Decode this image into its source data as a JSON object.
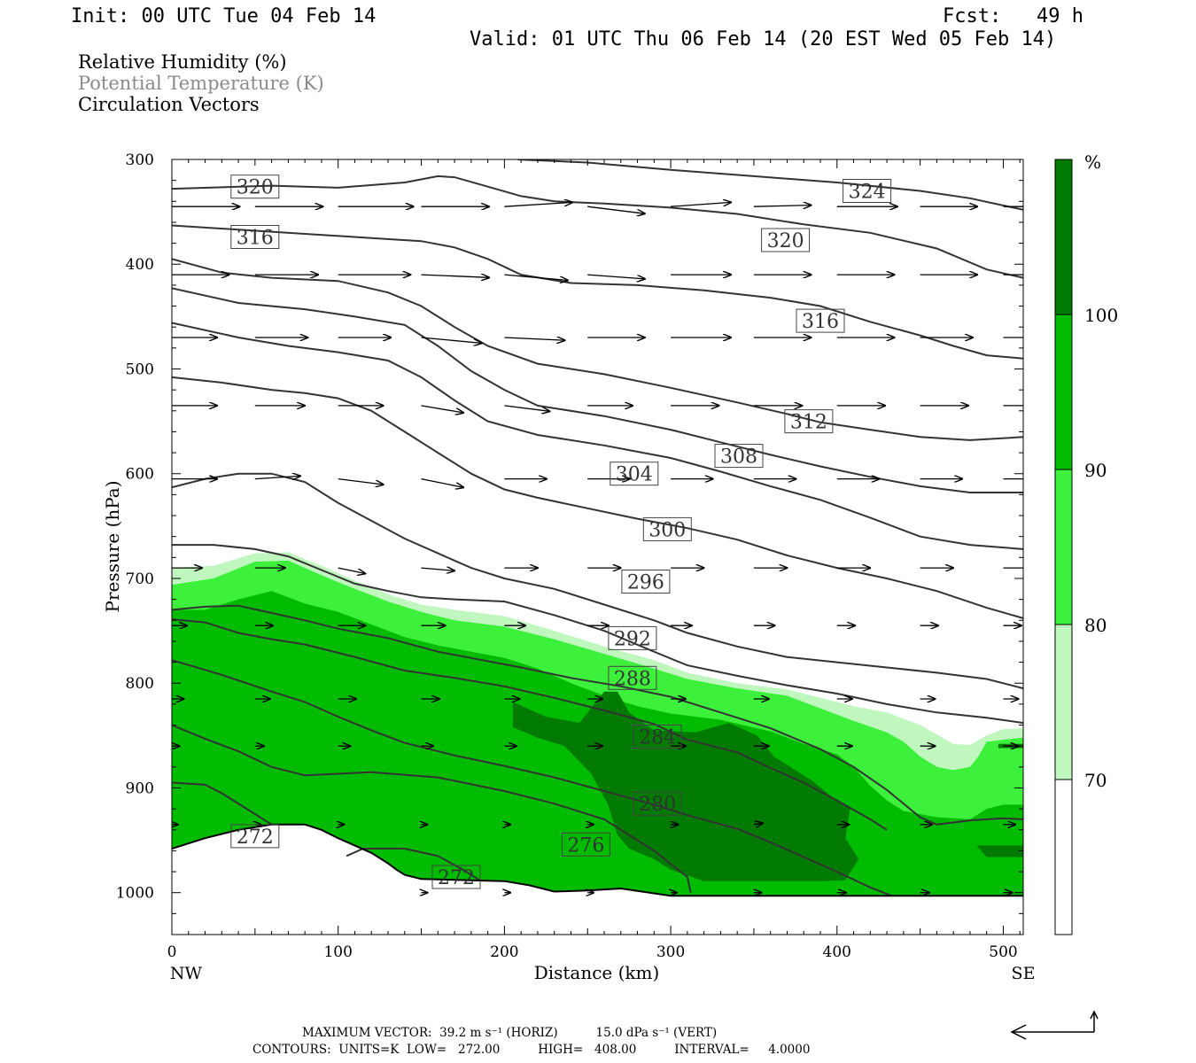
{
  "header": {
    "init": "Init: 00 UTC Tue 04 Feb 14",
    "fcst": "Fcst:   49 h",
    "valid": "Valid: 01 UTC Thu 06 Feb 14 (20 EST Wed 05 Feb 14)"
  },
  "legend_lines": [
    {
      "text": "Relative Humidity (%)",
      "color": "#000000"
    },
    {
      "text": "Potential Temperature (K)",
      "color": "#8a8a8a"
    },
    {
      "text": "Circulation Vectors",
      "color": "#000000"
    }
  ],
  "footer": {
    "max_vector": "MAXIMUM VECTOR:  39.2 m s⁻¹ (HORIZ)          15.0 dPa s⁻¹ (VERT)",
    "contours": "CONTOURS:  UNITS=K  LOW=   272.00          HIGH=   408.00          INTERVAL=     4.0000"
  },
  "chart_data": {
    "type": "cross-section",
    "x_axis": {
      "label": "Distance (km)",
      "range": [
        0,
        512
      ],
      "ticks": [
        0,
        100,
        200,
        300,
        400,
        500
      ],
      "left_end_label": "NW",
      "right_end_label": "SE"
    },
    "y_axis": {
      "label": "Pressure (hPa)",
      "range": [
        300,
        1040
      ],
      "inverted": true,
      "ticks": [
        300,
        400,
        500,
        600,
        700,
        800,
        900,
        1000
      ]
    },
    "rh_colorbar": {
      "unit": "%",
      "levels": [
        70,
        80,
        90,
        100
      ],
      "colors": [
        "#ffffff",
        "#bff7bf",
        "#3cf03c",
        "#00bb00",
        "#007a00"
      ]
    },
    "rh_fill_regions": [
      {
        "level": 70,
        "color": "#bff7bf",
        "boundary": [
          [
            0,
            690
          ],
          [
            25,
            688
          ],
          [
            50,
            676
          ],
          [
            70,
            675
          ],
          [
            90,
            688
          ],
          [
            110,
            702
          ],
          [
            130,
            715
          ],
          [
            150,
            725
          ],
          [
            170,
            730
          ],
          [
            200,
            736
          ],
          [
            230,
            750
          ],
          [
            260,
            765
          ],
          [
            290,
            778
          ],
          [
            310,
            790
          ],
          [
            340,
            800
          ],
          [
            370,
            806
          ],
          [
            390,
            814
          ],
          [
            410,
            822
          ],
          [
            430,
            828
          ],
          [
            450,
            840
          ],
          [
            470,
            858
          ],
          [
            480,
            859
          ],
          [
            490,
            850
          ],
          [
            500,
            844
          ],
          [
            512,
            843
          ]
        ]
      },
      {
        "level": 80,
        "color": "#3cf03c",
        "boundary": [
          [
            0,
            706
          ],
          [
            25,
            700
          ],
          [
            50,
            684
          ],
          [
            70,
            683
          ],
          [
            90,
            697
          ],
          [
            110,
            710
          ],
          [
            130,
            722
          ],
          [
            150,
            732
          ],
          [
            170,
            740
          ],
          [
            200,
            746
          ],
          [
            230,
            758
          ],
          [
            260,
            772
          ],
          [
            290,
            786
          ],
          [
            310,
            796
          ],
          [
            340,
            805
          ],
          [
            370,
            812
          ],
          [
            390,
            824
          ],
          [
            410,
            836
          ],
          [
            430,
            847
          ],
          [
            440,
            856
          ],
          [
            450,
            870
          ],
          [
            460,
            880
          ],
          [
            470,
            883
          ],
          [
            480,
            880
          ],
          [
            485,
            870
          ],
          [
            490,
            856
          ],
          [
            500,
            854
          ],
          [
            512,
            852
          ]
        ]
      },
      {
        "level": 90,
        "color": "#00bb00",
        "boundary": [
          [
            0,
            730
          ],
          [
            20,
            730
          ],
          [
            40,
            720
          ],
          [
            60,
            712
          ],
          [
            80,
            724
          ],
          [
            100,
            732
          ],
          [
            120,
            744
          ],
          [
            140,
            756
          ],
          [
            160,
            764
          ],
          [
            180,
            770
          ],
          [
            200,
            776
          ],
          [
            220,
            786
          ],
          [
            240,
            800
          ],
          [
            260,
            812
          ],
          [
            280,
            822
          ],
          [
            300,
            829
          ],
          [
            330,
            835
          ],
          [
            360,
            846
          ],
          [
            380,
            858
          ],
          [
            400,
            868
          ],
          [
            410,
            880
          ],
          [
            420,
            898
          ],
          [
            430,
            912
          ],
          [
            440,
            922
          ],
          [
            460,
            928
          ],
          [
            480,
            930
          ],
          [
            490,
            920
          ],
          [
            500,
            916
          ],
          [
            512,
            916
          ]
        ]
      },
      {
        "level": 100,
        "color": "#007a00",
        "boundary": [
          [
            205,
            818
          ],
          [
            225,
            832
          ],
          [
            245,
            838
          ],
          [
            260,
            808
          ],
          [
            268,
            808
          ],
          [
            275,
            828
          ],
          [
            290,
            845
          ],
          [
            315,
            847
          ],
          [
            335,
            838
          ],
          [
            352,
            850
          ],
          [
            362,
            870
          ],
          [
            385,
            893
          ],
          [
            398,
            910
          ],
          [
            408,
            918
          ],
          [
            405,
            948
          ],
          [
            413,
            968
          ],
          [
            405,
            988
          ],
          [
            390,
            989
          ],
          [
            320,
            989
          ],
          [
            300,
            978
          ],
          [
            290,
            968
          ],
          [
            275,
            958
          ],
          [
            268,
            945
          ],
          [
            262,
            915
          ],
          [
            252,
            886
          ],
          [
            236,
            860
          ],
          [
            220,
            852
          ],
          [
            205,
            842
          ]
        ]
      }
    ],
    "theta_contours_K": [
      272,
      276,
      280,
      284,
      288,
      292,
      296,
      300,
      304,
      308,
      312,
      316,
      320,
      324
    ],
    "theta_contours": [
      {
        "level": 272,
        "labels": [
          [
            50,
            946
          ],
          [
            171,
            985
          ]
        ]
      },
      {
        "level": 276,
        "labels": [
          [
            249,
            954
          ]
        ]
      },
      {
        "level": 280,
        "labels": [
          [
            292,
            915
          ]
        ]
      },
      {
        "level": 284,
        "labels": [
          [
            292,
            851
          ]
        ]
      },
      {
        "level": 288,
        "labels": [
          [
            277,
            795
          ]
        ]
      },
      {
        "level": 292,
        "labels": [
          [
            277,
            757
          ]
        ]
      },
      {
        "level": 296,
        "labels": [
          [
            285,
            703
          ]
        ]
      },
      {
        "level": 300,
        "labels": [
          [
            298,
            653
          ]
        ]
      },
      {
        "level": 304,
        "labels": [
          [
            278,
            600
          ]
        ]
      },
      {
        "level": 308,
        "labels": [
          [
            341,
            583
          ]
        ]
      },
      {
        "level": 312,
        "labels": [
          [
            383,
            550
          ]
        ]
      },
      {
        "level": 316,
        "labels": [
          [
            50,
            374
          ],
          [
            390,
            454
          ]
        ]
      },
      {
        "level": 320,
        "labels": [
          [
            50,
            326
          ],
          [
            369,
            377
          ]
        ]
      },
      {
        "level": 324,
        "labels": [
          [
            418,
            330
          ]
        ]
      }
    ],
    "vectors_note": "circulation vectors, predominantly westerly (left to right)",
    "max_vector_horiz": "39.2 m s⁻¹",
    "max_vector_vert": "15.0 dPa s⁻¹",
    "contour_units": "K",
    "contour_low": 272.0,
    "contour_high": 408.0,
    "contour_interval": 4.0
  }
}
